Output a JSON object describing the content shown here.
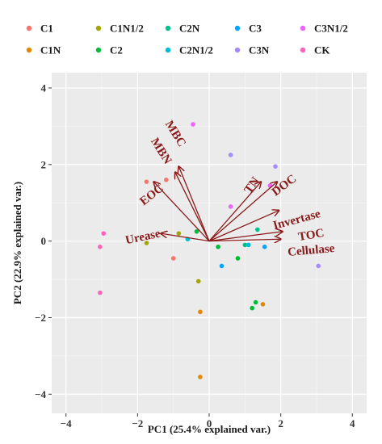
{
  "chart_data": {
    "type": "scatter",
    "subtype": "pca-biplot",
    "xlabel": "PC1 (25.4% explained var.)",
    "ylabel": "PC2 (22.9% explained var.)",
    "xlim": [
      -4.4,
      4.4
    ],
    "ylim": [
      -4.5,
      4.4
    ],
    "xticks": [
      -4,
      -2,
      0,
      2,
      4
    ],
    "yticks": [
      -4,
      -2,
      0,
      2,
      4
    ],
    "grid": true,
    "background": "#ebebeb",
    "legend_position": "top",
    "groups": [
      {
        "name": "C1",
        "color": "#f8766d"
      },
      {
        "name": "C1N",
        "color": "#e58700"
      },
      {
        "name": "C1N1/2",
        "color": "#a3a500"
      },
      {
        "name": "C2",
        "color": "#00ba38"
      },
      {
        "name": "C2N",
        "color": "#00c08b"
      },
      {
        "name": "C2N1/2",
        "color": "#00bcd8"
      },
      {
        "name": "C3",
        "color": "#00a5ff"
      },
      {
        "name": "C3N",
        "color": "#a58aff"
      },
      {
        "name": "C3N1/2",
        "color": "#f062ff"
      },
      {
        "name": "CK",
        "color": "#ff62bc"
      }
    ],
    "points": [
      {
        "group": "C1",
        "x": -1.75,
        "y": 1.55
      },
      {
        "group": "C1",
        "x": -1.2,
        "y": 1.6
      },
      {
        "group": "C1",
        "x": -1.0,
        "y": -0.45
      },
      {
        "group": "C1N",
        "x": -0.25,
        "y": -1.85
      },
      {
        "group": "C1N",
        "x": -0.25,
        "y": -3.55
      },
      {
        "group": "C1N",
        "x": 1.5,
        "y": -1.65
      },
      {
        "group": "C1N1/2",
        "x": -1.75,
        "y": -0.05
      },
      {
        "group": "C1N1/2",
        "x": -0.3,
        "y": -1.05
      },
      {
        "group": "C1N1/2",
        "x": -0.85,
        "y": 0.2
      },
      {
        "group": "C2",
        "x": 0.25,
        "y": -0.15
      },
      {
        "group": "C2",
        "x": 0.8,
        "y": -0.45
      },
      {
        "group": "C2",
        "x": 1.2,
        "y": -1.75
      },
      {
        "group": "C2",
        "x": 1.3,
        "y": -1.6
      },
      {
        "group": "C2",
        "x": -0.35,
        "y": 0.25
      },
      {
        "group": "C2N",
        "x": 1.35,
        "y": 0.3
      },
      {
        "group": "C2N",
        "x": 1.0,
        "y": -0.1
      },
      {
        "group": "C2N1/2",
        "x": 1.1,
        "y": -0.1
      },
      {
        "group": "C2N1/2",
        "x": -0.6,
        "y": 0.05
      },
      {
        "group": "C3",
        "x": 0.35,
        "y": -0.65
      },
      {
        "group": "C3",
        "x": 1.55,
        "y": -0.15
      },
      {
        "group": "C3N",
        "x": 0.6,
        "y": 2.25
      },
      {
        "group": "C3N",
        "x": 1.85,
        "y": 1.95
      },
      {
        "group": "C3N",
        "x": 3.05,
        "y": -0.65
      },
      {
        "group": "C3N1/2",
        "x": 0.6,
        "y": 0.9
      },
      {
        "group": "C3N1/2",
        "x": 1.7,
        "y": 1.45
      },
      {
        "group": "C3N1/2",
        "x": -0.45,
        "y": 3.05
      },
      {
        "group": "CK",
        "x": -2.95,
        "y": 0.2
      },
      {
        "group": "CK",
        "x": -3.05,
        "y": -0.15
      },
      {
        "group": "CK",
        "x": -3.05,
        "y": -1.35
      }
    ],
    "loadings_color": "#8b1a1a",
    "loadings": [
      {
        "name": "MBC",
        "x": -0.85,
        "y": 1.95,
        "lx": -0.95,
        "ly": 2.8,
        "rot": 58
      },
      {
        "name": "MBN",
        "x": -0.95,
        "y": 1.8,
        "lx": -1.35,
        "ly": 2.35,
        "rot": 58
      },
      {
        "name": "EOC",
        "x": -1.55,
        "y": 1.55,
        "lx": -1.6,
        "ly": 1.2,
        "rot": -38
      },
      {
        "name": "Urease",
        "x": -1.35,
        "y": 0.2,
        "lx": -1.85,
        "ly": 0.1,
        "rot": -12
      },
      {
        "name": "TN",
        "x": 1.45,
        "y": 1.55,
        "lx": 1.2,
        "ly": 1.45,
        "rot": -55
      },
      {
        "name": "DOC",
        "x": 1.9,
        "y": 1.55,
        "lx": 2.1,
        "ly": 1.45,
        "rot": -37
      },
      {
        "name": "Invertase",
        "x": 1.95,
        "y": 0.8,
        "lx": 2.45,
        "ly": 0.55,
        "rot": -15
      },
      {
        "name": "TOC",
        "x": 2.05,
        "y": 0.25,
        "lx": 2.85,
        "ly": 0.15,
        "rot": -10
      },
      {
        "name": "Cellulase",
        "x": 2.0,
        "y": 0.05,
        "lx": 2.85,
        "ly": -0.25,
        "rot": -5
      }
    ]
  }
}
